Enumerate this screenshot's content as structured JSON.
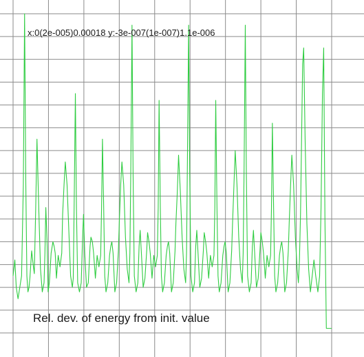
{
  "chart_data": {
    "type": "line",
    "title": "",
    "range_label": "x:0(2e-005)0.00018 y:-3e-007(1e-007)1.1e-006",
    "caption": "Rel. dev. of energy from init. value",
    "x_range": [
      0,
      0.00018
    ],
    "x_step": 2e-05,
    "y_range": [
      -3e-07,
      1.1e-06
    ],
    "y_step": 1e-07,
    "grid": true,
    "line_color": "#2ecc40",
    "grid_color": "#8a8a8a",
    "background": "#ffffff",
    "series": [
      {
        "x": [
          0,
          1e-06,
          1.8e-06,
          2.8e-06,
          3.8e-06,
          4.8e-06,
          5.8e-06,
          6.5e-06,
          7.2e-06,
          7.8e-06,
          8.4e-06,
          9e-06,
          9.5e-06,
          1.05e-05,
          1.15e-05,
          1.2e-05,
          1.28e-05,
          1.35e-05,
          1.45e-05,
          1.55e-05,
          1.65e-05,
          1.75e-05,
          1.8e-05,
          1.85e-05,
          1.92e-05,
          1.98e-05,
          2.05e-05,
          2.15e-05,
          2.25e-05,
          2.32e-05,
          2.38e-05,
          2.45e-05,
          2.55e-05,
          2.65e-05,
          2.75e-05,
          2.8e-05,
          2.88e-05,
          2.95e-05,
          3.05e-05,
          3.15e-05,
          3.25e-05,
          3.35e-05,
          3.4e-05,
          3.45e-05,
          3.52e-05,
          3.58e-05,
          3.65e-05,
          3.75e-05,
          3.85e-05,
          3.92e-05,
          3.98e-05,
          4.05e-05,
          4.15e-05,
          4.25e-05,
          4.35e-05,
          4.4e-05,
          4.48e-05,
          4.55e-05,
          4.65e-05,
          4.75e-05,
          4.85e-05,
          4.95e-05,
          5e-05,
          5.05e-05,
          5.12e-05,
          5.18e-05,
          5.25e-05,
          5.35e-05,
          5.45e-05,
          5.52e-05,
          5.58e-05,
          5.65e-05,
          5.75e-05,
          5.85e-05,
          5.95e-05,
          6e-05,
          6.08e-05,
          6.15e-05,
          6.25e-05,
          6.35e-05,
          6.45e-05,
          6.55e-05,
          6.6e-05,
          6.65e-05,
          6.72e-05,
          6.78e-05,
          6.85e-05,
          6.95e-05,
          7.05e-05,
          7.12e-05,
          7.18e-05,
          7.25e-05,
          7.35e-05,
          7.45e-05,
          7.55e-05,
          7.6e-05,
          7.68e-05,
          7.75e-05,
          7.85e-05,
          7.95e-05,
          8.05e-05,
          8.15e-05,
          8.2e-05,
          8.25e-05,
          8.32e-05,
          8.38e-05,
          8.45e-05,
          8.55e-05,
          8.65e-05,
          8.72e-05,
          8.78e-05,
          8.85e-05,
          8.95e-05,
          9.05e-05,
          9.15e-05,
          9.2e-05,
          9.28e-05,
          9.35e-05,
          9.45e-05,
          9.55e-05,
          9.65e-05,
          9.75e-05,
          9.8e-05,
          9.85e-05,
          9.92e-05,
          9.98e-05,
          0.0001005,
          0.0001015,
          0.0001025,
          0.0001032,
          0.0001038,
          0.0001045,
          0.0001055,
          0.0001065,
          0.0001075,
          0.000108,
          0.0001088,
          0.0001095,
          0.0001105,
          0.0001115,
          0.0001125,
          0.0001135,
          0.000114,
          0.0001145,
          0.0001152,
          0.0001158,
          0.0001165,
          0.0001175,
          0.0001185,
          0.0001192,
          0.0001198,
          0.0001205,
          0.0001215,
          0.0001225,
          0.0001235,
          0.000124,
          0.0001248,
          0.0001255,
          0.0001265,
          0.0001275,
          0.0001285,
          0.0001295,
          0.00013,
          0.0001305,
          0.0001312,
          0.0001318,
          0.0001325,
          0.0001335,
          0.0001345,
          0.0001352,
          0.0001358,
          0.0001365,
          0.0001375,
          0.0001385,
          0.0001395,
          0.00014,
          0.0001408,
          0.0001415,
          0.0001425,
          0.0001435,
          0.0001445,
          0.0001455,
          0.000146,
          0.0001465,
          0.0001472,
          0.0001478,
          0.0001485,
          0.0001495,
          0.0001505,
          0.0001512,
          0.0001518,
          0.0001525,
          0.0001535,
          0.0001545,
          0.0001555,
          0.000156,
          0.0001568,
          0.0001575,
          0.0001585,
          0.0001595,
          0.0001605,
          0.0001612,
          0.0001618,
          0.0001624,
          0.000163,
          0.0001636,
          0.0001642,
          0.000165,
          0.000166,
          0.000167,
          0.000168,
          0.000169,
          0.00017,
          0.000171,
          0.0001722,
          0.0001732,
          0.000174,
          0.0001748,
          0.0001755,
          0.0001762,
          0.000177,
          0.000178,
          0.00018
        ],
        "y": [
          -5e-08,
          2e-08,
          -1e-07,
          -1.5e-07,
          -1e-07,
          -5e-08,
          3.5e-07,
          1.1e-06,
          3.5e-07,
          -5e-08,
          -1.2e-07,
          -1e-07,
          -6e-08,
          6e-08,
          -1e-08,
          -4e-08,
          2.5e-07,
          5.5e-07,
          2.5e-07,
          -2e-08,
          -1.2e-07,
          -8e-08,
          5e-08,
          2.5e-07,
          1e-07,
          -1.2e-07,
          -8e-08,
          5e-08,
          1e-07,
          8e-08,
          5e-08,
          -6e-08,
          4e-08,
          -1e-08,
          5e-08,
          2.2e-07,
          3.5e-07,
          4.5e-07,
          3.5e-07,
          1.5e-07,
          -5e-08,
          -1e-07,
          -6e-08,
          2.5e-07,
          7.5e-07,
          2.5e-07,
          -8e-08,
          -1.2e-07,
          -8e-08,
          1e-07,
          2.2e-07,
          5e-08,
          -1e-07,
          -8e-08,
          8e-08,
          1.2e-07,
          1e-07,
          5e-08,
          -6e-08,
          4e-08,
          -1e-08,
          4e-08,
          2.5e-07,
          5.5e-07,
          2.5e-07,
          -5e-08,
          -1.2e-07,
          -8e-08,
          4e-08,
          8e-08,
          1e-07,
          5e-08,
          -1.2e-07,
          -8e-08,
          6e-08,
          1.8e-07,
          3.5e-07,
          4.5e-07,
          3.5e-07,
          1.2e-07,
          -2e-08,
          -8e-08,
          5e-08,
          4e-07,
          1.05e-06,
          4e-07,
          -5e-08,
          -1.2e-07,
          -8e-08,
          8e-08,
          1.5e-07,
          5e-08,
          -1e-07,
          -6e-08,
          6e-08,
          1.4e-07,
          1e-07,
          5e-08,
          -6e-08,
          4e-08,
          -1e-08,
          4e-08,
          2.5e-07,
          7.2e-07,
          2.5e-07,
          -5e-08,
          -1.2e-07,
          -8e-08,
          4e-08,
          8e-08,
          1e-07,
          5e-08,
          -1.2e-07,
          -8e-08,
          6e-08,
          1.8e-07,
          3.2e-07,
          4.8e-07,
          3.2e-07,
          1.2e-07,
          -2e-08,
          -8e-08,
          5e-08,
          4.5e-07,
          1.05e-06,
          4e-07,
          -5e-08,
          -1.2e-07,
          -8e-08,
          8e-08,
          1.5e-07,
          5e-08,
          -1e-07,
          -6e-08,
          6e-08,
          1.4e-07,
          1e-07,
          5e-08,
          -6e-08,
          4e-08,
          -1e-08,
          4e-08,
          2.5e-07,
          7.2e-07,
          2.5e-07,
          -5e-08,
          -1.2e-07,
          -8e-08,
          4e-08,
          8e-08,
          1e-07,
          5e-08,
          -1.2e-07,
          -8e-08,
          6e-08,
          1.8e-07,
          3.5e-07,
          5e-07,
          3.5e-07,
          1.2e-07,
          -2e-08,
          -8e-08,
          5e-08,
          4e-07,
          1.05e-06,
          4e-07,
          -5e-08,
          -1.2e-07,
          -8e-08,
          8e-08,
          1.5e-07,
          5e-08,
          -1e-07,
          -6e-08,
          6e-08,
          1.4e-07,
          1e-07,
          5e-08,
          -6e-08,
          4e-08,
          -1e-08,
          4e-08,
          2.5e-07,
          6.2e-07,
          2.5e-07,
          -5e-08,
          -1.2e-07,
          -8e-08,
          4e-08,
          8e-08,
          1e-07,
          5e-08,
          -1.2e-07,
          -8e-08,
          6e-08,
          1.8e-07,
          3.5e-07,
          4.8e-07,
          3.5e-07,
          1.2e-07,
          -2e-08,
          -8e-08,
          2e-08,
          2.2e-07,
          5.5e-07,
          8.8e-07,
          9.5e-07,
          5.5e-07,
          1.8e-07,
          -2e-08,
          -1.2e-07,
          -5e-08,
          2e-08,
          -5e-08,
          -1.2e-07,
          -5e-08,
          2.5e-07,
          7.5e-07,
          9.5e-07,
          2e-07,
          -2.8e-07,
          -2.8e-07,
          -2.8e-07
        ]
      }
    ]
  }
}
